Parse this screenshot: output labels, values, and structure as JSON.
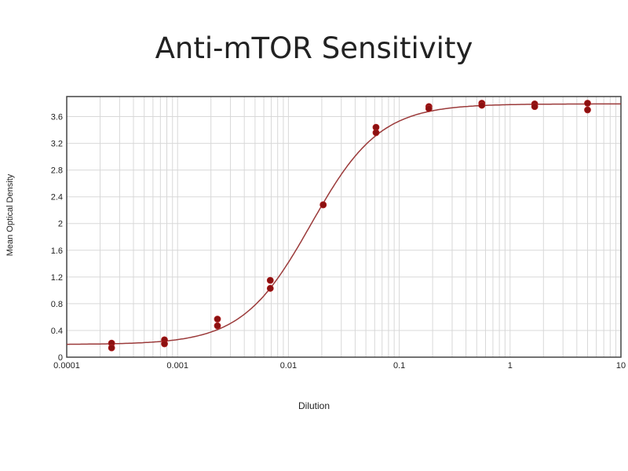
{
  "chart_data": {
    "type": "scatter",
    "title": "Anti-mTOR Sensitivity",
    "xlabel": "Dilution",
    "ylabel": "Mean Optical Density",
    "xscale": "log",
    "xlim": [
      0.0001,
      10
    ],
    "ylim": [
      0,
      3.9
    ],
    "grid": true,
    "xticks": [
      "0.0001",
      "0.001",
      "0.01",
      "0.1",
      "1",
      "10"
    ],
    "xtick_values": [
      0.0001,
      0.001,
      0.01,
      0.1,
      1,
      10
    ],
    "yticks": [
      "0",
      "0.4",
      "0.8",
      "1.2",
      "1.6",
      "2",
      "2.4",
      "2.8",
      "3.2",
      "3.6"
    ],
    "ytick_values": [
      0,
      0.4,
      0.8,
      1.2,
      1.6,
      2,
      2.4,
      2.8,
      3.2,
      3.6
    ],
    "points": [
      {
        "x": 0.000254,
        "y": [
          0.21,
          0.14
        ]
      },
      {
        "x": 0.000762,
        "y": [
          0.26,
          0.2
        ]
      },
      {
        "x": 0.00229,
        "y": [
          0.57,
          0.47
        ]
      },
      {
        "x": 0.00686,
        "y": [
          1.15,
          1.03
        ]
      },
      {
        "x": 0.0206,
        "y": [
          2.28,
          2.28
        ]
      },
      {
        "x": 0.0617,
        "y": [
          3.44,
          3.36
        ]
      },
      {
        "x": 0.185,
        "y": [
          3.75,
          3.72
        ]
      },
      {
        "x": 0.556,
        "y": [
          3.8,
          3.77
        ]
      },
      {
        "x": 1.667,
        "y": [
          3.79,
          3.75
        ]
      },
      {
        "x": 5.0,
        "y": [
          3.8,
          3.7
        ]
      }
    ],
    "fit": {
      "model": "4PL",
      "bottom": 0.19,
      "top": 3.79,
      "ec50": 0.016,
      "hill": 1.4
    },
    "colors": {
      "points": "#8b1010",
      "curve": "#9b3a3a",
      "grid": "#d8d8d8",
      "axis": "#444444"
    }
  }
}
